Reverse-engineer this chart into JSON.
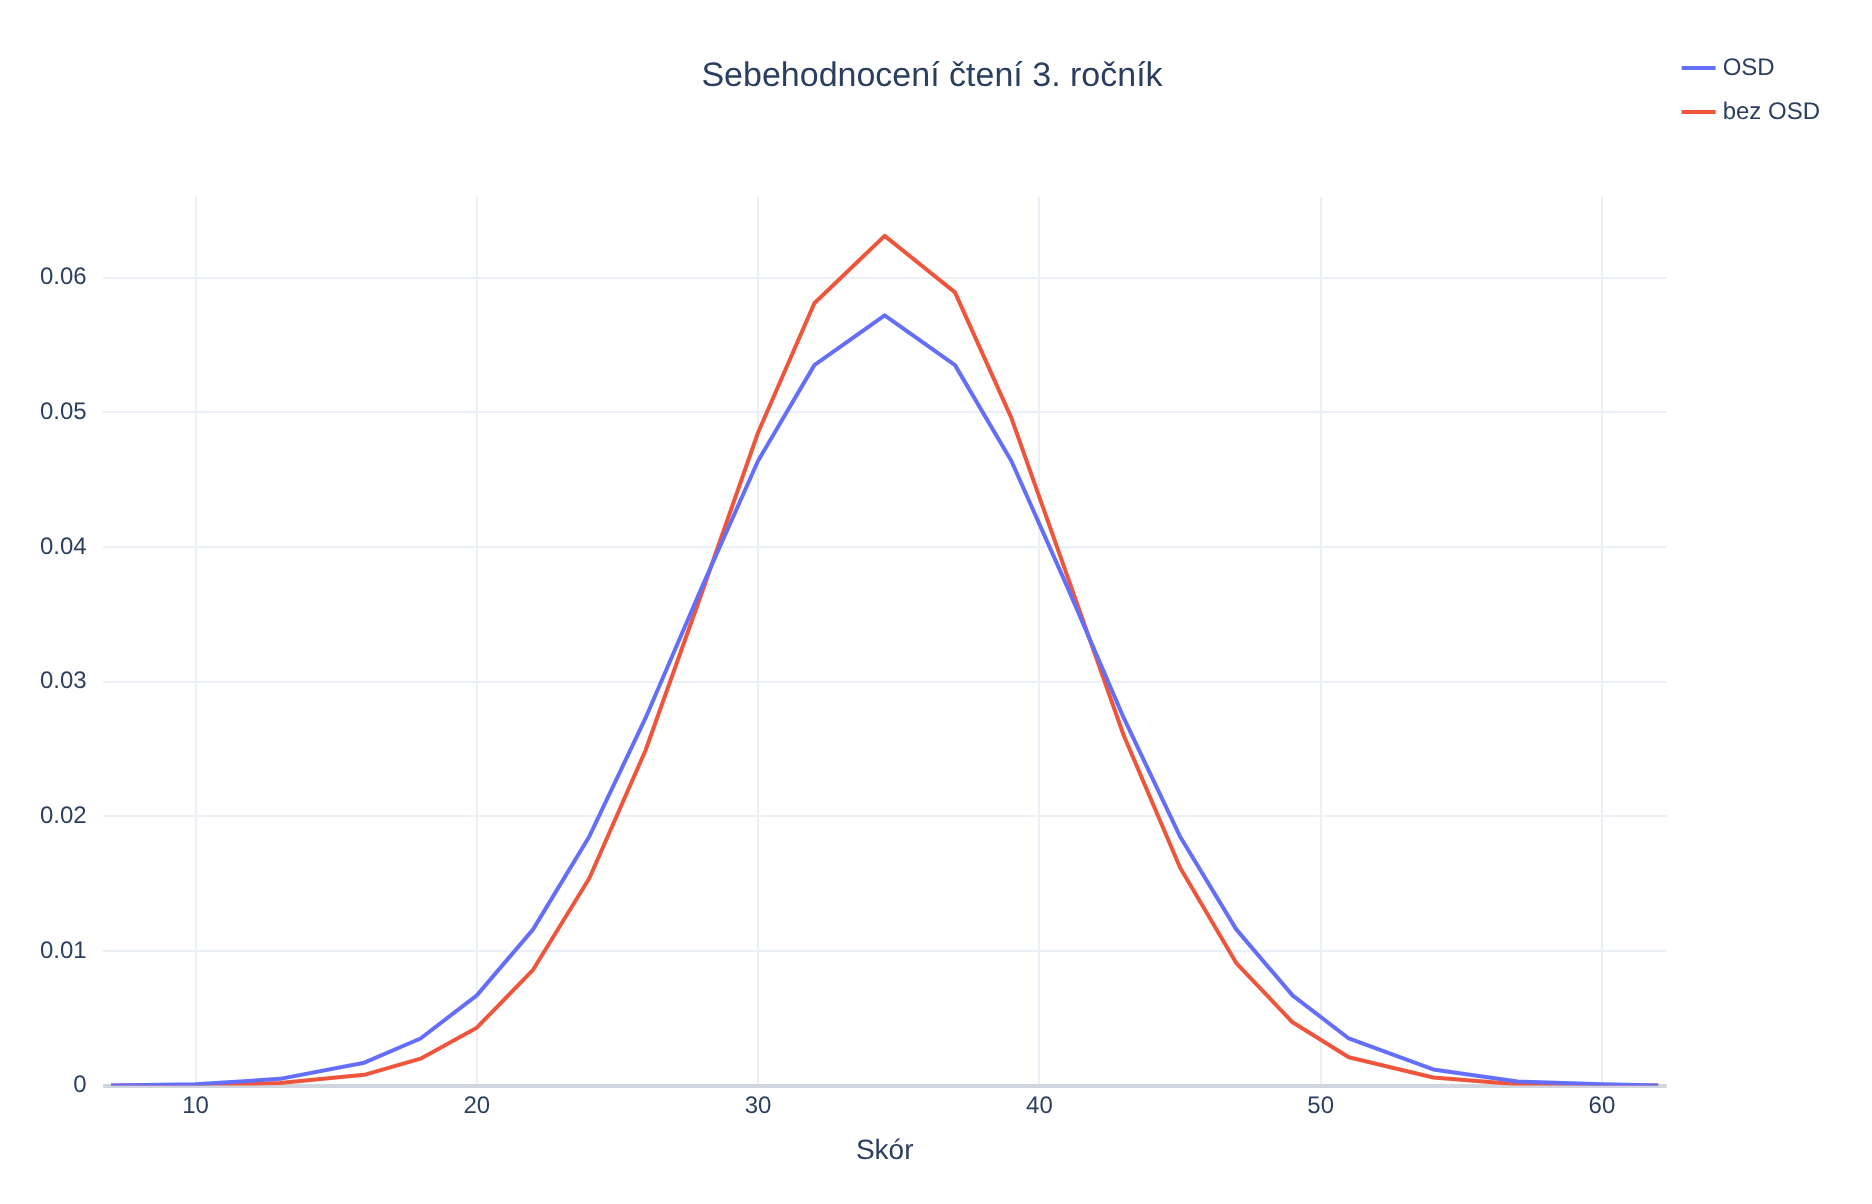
{
  "chart_data": {
    "type": "line",
    "title": "Sebehodnocení čtení 3. ročník",
    "xlabel": "Skór",
    "x": [
      7,
      10,
      13,
      16,
      18,
      20,
      22,
      24,
      26,
      28,
      30,
      32,
      34.5,
      37,
      39,
      41,
      43,
      45,
      47,
      49,
      51,
      54,
      57,
      60,
      62
    ],
    "series": [
      {
        "name": "OSD",
        "color": "#636efa",
        "values": [
          0.0,
          0.0001,
          0.0005,
          0.0017,
          0.0035,
          0.0067,
          0.0116,
          0.0185,
          0.0273,
          0.037,
          0.0464,
          0.0535,
          0.0572,
          0.0535,
          0.0464,
          0.037,
          0.0273,
          0.0185,
          0.0116,
          0.0067,
          0.0035,
          0.0012,
          0.0003,
          0.0001,
          0.0
        ]
      },
      {
        "name": "bez OSD",
        "color": "#ef553b",
        "values": [
          0.0,
          0.0,
          0.0002,
          0.0008,
          0.002,
          0.0043,
          0.0086,
          0.0154,
          0.0249,
          0.0366,
          0.0485,
          0.0581,
          0.0631,
          0.0589,
          0.0496,
          0.0378,
          0.026,
          0.0162,
          0.0091,
          0.0047,
          0.0021,
          0.0006,
          0.0001,
          0.0,
          0.0
        ]
      }
    ],
    "xlim": [
      6.7,
      62.3
    ],
    "xticks": [
      10,
      20,
      30,
      40,
      50,
      60
    ],
    "ylim": [
      0,
      0.066
    ],
    "yticks": [
      0,
      0.01,
      0.02,
      0.03,
      0.04,
      0.05,
      0.06
    ],
    "grid": true,
    "legend": "top right",
    "marker": "none",
    "line_style": "solid"
  }
}
